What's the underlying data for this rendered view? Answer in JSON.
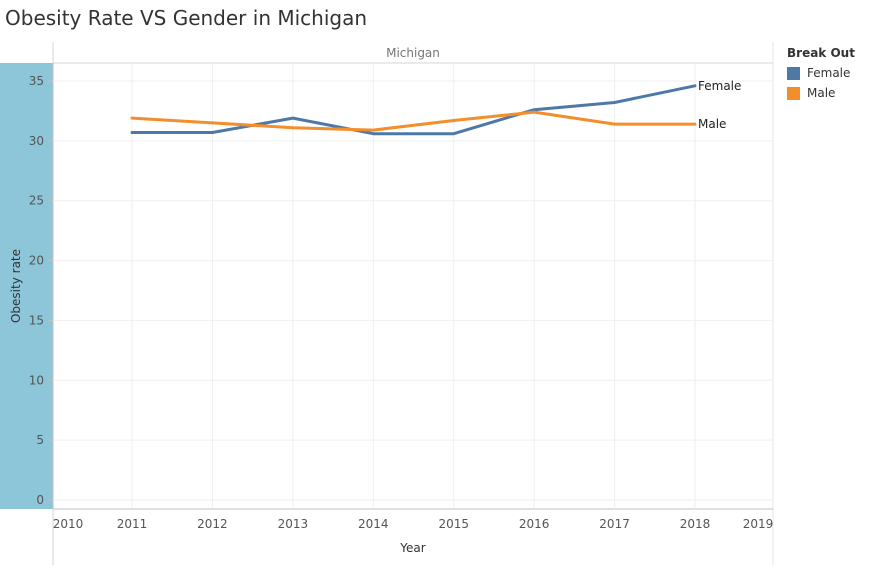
{
  "chart_data": {
    "type": "line",
    "title": "Obesity Rate VS Gender in Michigan",
    "panel_title": "Michigan",
    "xlabel": "Year",
    "ylabel": "Obesity rate",
    "x": [
      2011,
      2012,
      2013,
      2014,
      2015,
      2016,
      2017,
      2018
    ],
    "xlim": [
      2010,
      2019
    ],
    "xticks": [
      "2010",
      "2011",
      "2012",
      "2013",
      "2014",
      "2015",
      "2016",
      "2017",
      "2018",
      "2019"
    ],
    "ylim": [
      0,
      36
    ],
    "yticks": [
      "0",
      "5",
      "10",
      "15",
      "20",
      "25",
      "30",
      "35"
    ],
    "grid": true,
    "legend_title": "Break Out",
    "legend_placement": "right",
    "series": [
      {
        "name": "Female",
        "color": "#4e79a7",
        "values": [
          30.7,
          30.7,
          31.9,
          30.6,
          30.6,
          32.6,
          33.2,
          34.6
        ]
      },
      {
        "name": "Male",
        "color": "#f28e2b",
        "values": [
          31.9,
          31.5,
          31.1,
          30.9,
          31.7,
          32.4,
          31.4,
          31.4
        ]
      }
    ]
  }
}
